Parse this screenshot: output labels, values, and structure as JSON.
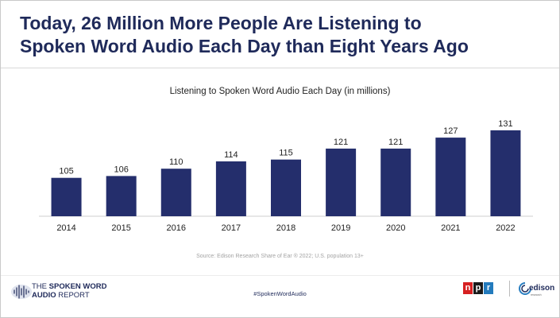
{
  "headline": {
    "line1": "Today, 26 Million More People Are Listening to",
    "line2": "Spoken Word Audio Each Day than Eight Years Ago"
  },
  "chart_data": {
    "type": "bar",
    "title": "Listening to Spoken Word Audio Each Day (in millions)",
    "categories": [
      "2014",
      "2015",
      "2016",
      "2017",
      "2018",
      "2019",
      "2020",
      "2021",
      "2022"
    ],
    "values": [
      105,
      106,
      110,
      114,
      115,
      121,
      121,
      127,
      131
    ],
    "data_labels": [
      "105",
      "106",
      "110",
      "114",
      "115",
      "121",
      "121",
      "127",
      "131"
    ],
    "xlabel": "",
    "ylabel": "",
    "bar_color": "#242e6c",
    "grid": false,
    "legend": "none"
  },
  "source": "Source: Edison Research Share of Ear ® 2022; U.S. population 13+",
  "footer": {
    "report_line1_a": "THE ",
    "report_line1_b": "SPOKEN WORD",
    "report_line2_a": "AUDIO ",
    "report_line2_b": "REPORT",
    "hashtag": "#SpokenWordAudio",
    "npr_n": "n",
    "npr_p": "p",
    "npr_r": "r",
    "edison_word": "edison",
    "edison_sub": "research"
  },
  "colors": {
    "headline": "#1f2a5a",
    "bar": "#242e6c",
    "npr_red": "#d62021",
    "npr_black": "#1a1a1a",
    "npr_blue": "#237bbd"
  },
  "icons": [
    "sound-wave-icon",
    "edison-swirl-icon"
  ]
}
